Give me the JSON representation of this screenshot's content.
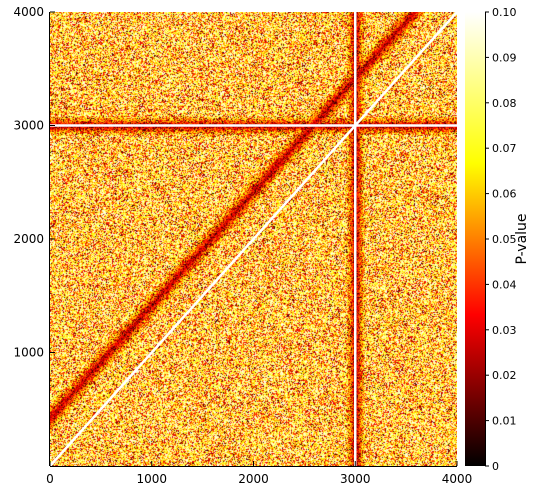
{
  "chart_data": {
    "type": "heatmap",
    "title": "",
    "xlabel": "",
    "ylabel": "",
    "xlim": [
      0,
      4000
    ],
    "ylim": [
      0,
      4000
    ],
    "x_ticks": [
      "0",
      "1000",
      "2000",
      "3000",
      "4000"
    ],
    "y_ticks": [
      "1000",
      "2000",
      "3000",
      "4000"
    ],
    "grid": false,
    "colormap": "afmhot",
    "colormap_stops": [
      "#000000",
      "#800000",
      "#ff0000",
      "#ff8000",
      "#ffff00",
      "#ffff80",
      "#ffffff"
    ],
    "colorbar": {
      "label": "P-value",
      "range": [
        0,
        0.1
      ],
      "ticks": [
        "0",
        "0.01",
        "0.02",
        "0.03",
        "0.04",
        "0.05",
        "0.06",
        "0.07",
        "0.08",
        "0.09",
        "0.10"
      ]
    },
    "diagonal_line": {
      "from": [
        0,
        0
      ],
      "to": [
        4000,
        4000
      ],
      "color": "#ffffff"
    },
    "horizontal_band_y": 3000,
    "vertical_band_x": 3000
  }
}
